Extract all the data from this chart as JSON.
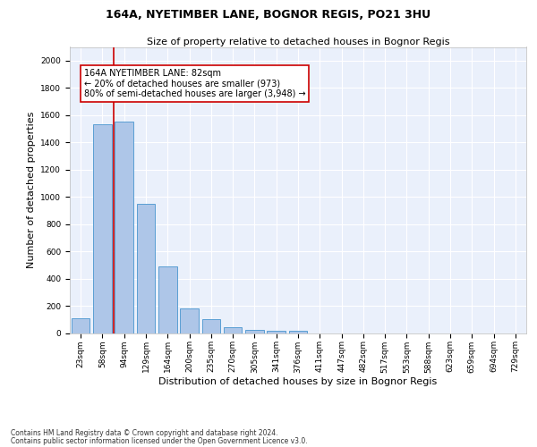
{
  "title": "164A, NYETIMBER LANE, BOGNOR REGIS, PO21 3HU",
  "subtitle": "Size of property relative to detached houses in Bognor Regis",
  "xlabel": "Distribution of detached houses by size in Bognor Regis",
  "ylabel": "Number of detached properties",
  "footnote1": "Contains HM Land Registry data © Crown copyright and database right 2024.",
  "footnote2": "Contains public sector information licensed under the Open Government Licence v3.0.",
  "categories": [
    "23sqm",
    "58sqm",
    "94sqm",
    "129sqm",
    "164sqm",
    "200sqm",
    "235sqm",
    "270sqm",
    "305sqm",
    "341sqm",
    "376sqm",
    "411sqm",
    "447sqm",
    "482sqm",
    "517sqm",
    "553sqm",
    "588sqm",
    "623sqm",
    "659sqm",
    "694sqm",
    "729sqm"
  ],
  "values": [
    110,
    1530,
    1555,
    950,
    490,
    180,
    100,
    45,
    25,
    15,
    15,
    0,
    0,
    0,
    0,
    0,
    0,
    0,
    0,
    0,
    0
  ],
  "bar_color": "#aec6e8",
  "bar_edge_color": "#5a9fd4",
  "vline_x": 1.5,
  "vline_color": "#cc0000",
  "annotation_text": "164A NYETIMBER LANE: 82sqm\n← 20% of detached houses are smaller (973)\n80% of semi-detached houses are larger (3,948) →",
  "annotation_box_color": "#ffffff",
  "annotation_box_edge_color": "#cc0000",
  "ylim": [
    0,
    2100
  ],
  "yticks": [
    0,
    200,
    400,
    600,
    800,
    1000,
    1200,
    1400,
    1600,
    1800,
    2000
  ],
  "background_color": "#eaf0fb",
  "grid_color": "#ffffff",
  "fig_background": "#ffffff",
  "title_fontsize": 9,
  "subtitle_fontsize": 8,
  "axis_label_fontsize": 8,
  "tick_fontsize": 6.5,
  "annotation_fontsize": 7,
  "footnote_fontsize": 5.5
}
